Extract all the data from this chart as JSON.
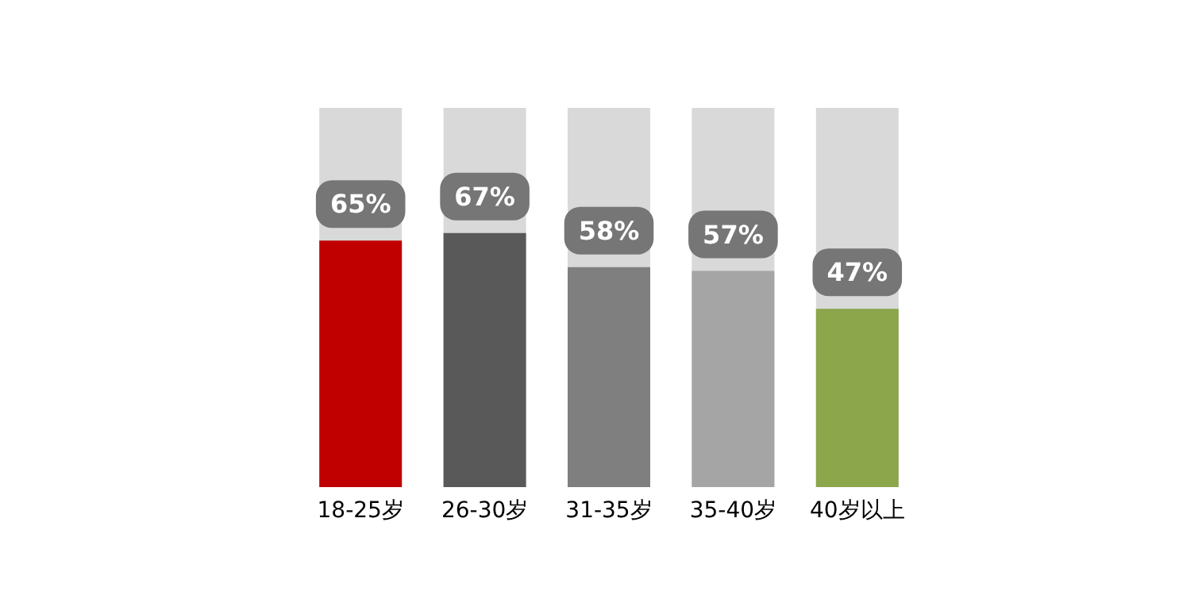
{
  "chart_data": {
    "type": "bar",
    "categories": [
      "18-25岁",
      "26-30岁",
      "31-35岁",
      "35-40岁",
      "40岁以上"
    ],
    "values": [
      65,
      67,
      58,
      57,
      47
    ],
    "colors": [
      "#c00000",
      "#595959",
      "#7f7f7f",
      "#a5a5a5",
      "#8ba64b"
    ],
    "ylim": [
      0,
      100
    ],
    "data_labels": true,
    "value_labels": [
      "65%",
      "67%",
      "58%",
      "57%",
      "47%"
    ],
    "tick_labels": "x"
  }
}
